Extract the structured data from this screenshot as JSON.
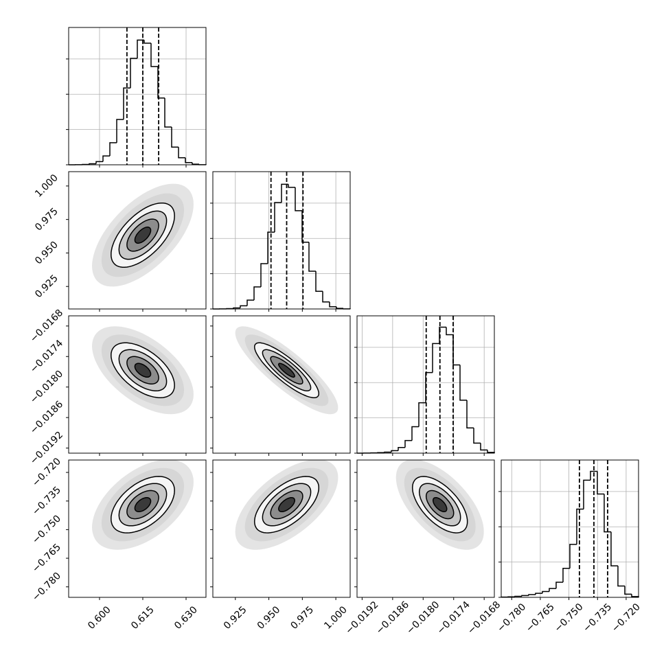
{
  "chart_data": {
    "type": "corner",
    "color": "#000000",
    "contour_levels": [
      0.5,
      1,
      1.5,
      2
    ],
    "hist_ylim": [
      0,
      1090
    ],
    "hist_yticks": [
      0,
      280,
      560,
      840
    ],
    "parameters": [
      {
        "lim": [
          0.5893,
          0.6369
        ],
        "ticks": [
          {
            "value": 0.6,
            "label": "0.600"
          },
          {
            "value": 0.615,
            "label": "0.615"
          },
          {
            "value": 0.63,
            "label": "0.630"
          }
        ],
        "bins": [
          0.5893,
          0.59168,
          0.59406,
          0.59644,
          0.59882,
          0.6012,
          0.60358,
          0.60596,
          0.60834,
          0.61072,
          0.6131,
          0.61548,
          0.61786,
          0.62024,
          0.62262,
          0.625,
          0.62738,
          0.62976,
          0.63214,
          0.63452,
          0.6369
        ],
        "counts": [
          0,
          1,
          3,
          8,
          25,
          70,
          175,
          360,
          610,
          845,
          990,
          965,
          780,
          530,
          300,
          140,
          56,
          18,
          5,
          1
        ],
        "quantiles": [
          0.6095,
          0.615,
          0.6205
        ],
        "sd": 0.0055
      },
      {
        "lim": [
          0.9082,
          1.0107
        ],
        "ticks": [
          {
            "value": 0.925,
            "label": "0.925"
          },
          {
            "value": 0.95,
            "label": "0.950"
          },
          {
            "value": 0.975,
            "label": "0.975"
          },
          {
            "value": 1.0,
            "label": "1.000"
          }
        ],
        "bins": [
          0.9082,
          0.913325,
          0.91845,
          0.923575,
          0.9287,
          0.933825,
          0.93895,
          0.944075,
          0.9492,
          0.954325,
          0.95945,
          0.964575,
          0.9697,
          0.974825,
          0.97995,
          0.985075,
          0.9902,
          0.995325,
          1.00045,
          1.005575,
          1.0107
        ],
        "counts": [
          0,
          1,
          3,
          8,
          25,
          70,
          175,
          360,
          610,
          845,
          990,
          965,
          780,
          530,
          300,
          140,
          56,
          18,
          5,
          1
        ],
        "quantiles": [
          0.9516,
          0.9633,
          0.9755
        ],
        "sd": 0.012
      },
      {
        "lim": [
          -0.0193,
          -0.0166
        ],
        "ticks": [
          {
            "value": -0.0192,
            "label": "−0.0192"
          },
          {
            "value": -0.0186,
            "label": "−0.0186"
          },
          {
            "value": -0.018,
            "label": "−0.0180"
          },
          {
            "value": -0.0174,
            "label": "−0.0174"
          },
          {
            "value": -0.0168,
            "label": "−0.0168"
          }
        ],
        "bins": [
          -0.0193,
          -0.019165,
          -0.01903,
          -0.018895,
          -0.01876,
          -0.018625,
          -0.01849,
          -0.018355,
          -0.01822,
          -0.018085,
          -0.01795,
          -0.017815,
          -0.01768,
          -0.017545,
          -0.01741,
          -0.017275,
          -0.01714,
          -0.017005,
          -0.01687,
          -0.016735,
          -0.0166
        ],
        "counts": [
          0,
          1,
          2,
          4,
          8,
          20,
          45,
          100,
          210,
          400,
          640,
          870,
          1000,
          940,
          700,
          420,
          200,
          80,
          25,
          6
        ],
        "quantiles": [
          -0.01794,
          -0.01767,
          -0.01741
        ],
        "sd": 0.00027
      },
      {
        "lim": [
          -0.7855,
          -0.7135
        ],
        "ticks": [
          {
            "value": -0.78,
            "label": "−0.780"
          },
          {
            "value": -0.765,
            "label": "−0.765"
          },
          {
            "value": -0.75,
            "label": "−0.750"
          },
          {
            "value": -0.735,
            "label": "−0.735"
          },
          {
            "value": -0.72,
            "label": "−0.720"
          }
        ],
        "bins": [
          -0.7855,
          -0.7819,
          -0.7783,
          -0.7747,
          -0.7711,
          -0.7675,
          -0.7639,
          -0.7603,
          -0.7567,
          -0.7531,
          -0.7495,
          -0.7459,
          -0.7423,
          -0.7387,
          -0.7351,
          -0.7315,
          -0.7279,
          -0.7243,
          -0.7207,
          -0.7171,
          -0.7135
        ],
        "counts": [
          2,
          4,
          8,
          14,
          22,
          32,
          46,
          70,
          120,
          230,
          420,
          700,
          930,
          1000,
          820,
          520,
          250,
          90,
          25,
          6
        ],
        "quantiles": [
          -0.7445,
          -0.7369,
          -0.7297
        ],
        "sd": 0.0074
      }
    ],
    "pairs": [
      {
        "col": 0,
        "row": 1,
        "rho": 0.6
      },
      {
        "col": 0,
        "row": 2,
        "rho": -0.55
      },
      {
        "col": 1,
        "row": 2,
        "rho": -0.85
      },
      {
        "col": 0,
        "row": 3,
        "rho": 0.5
      },
      {
        "col": 1,
        "row": 3,
        "rho": 0.6
      },
      {
        "col": 2,
        "row": 3,
        "rho": -0.6
      }
    ]
  }
}
